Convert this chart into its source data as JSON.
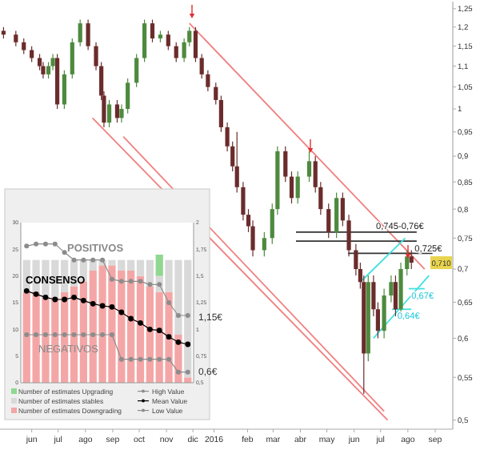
{
  "chart_data": [
    {
      "type": "candlestick",
      "log": true,
      "x": [
        "2015-05-14",
        "2015-05-28",
        "2015-06-06",
        "2015-06-15",
        "2015-06-24",
        "2015-06-28",
        "2015-07-04",
        "2015-07-09",
        "2015-07-14",
        "2015-07-22",
        "2015-07-31",
        "2015-08-09",
        "2015-08-18",
        "2015-08-27",
        "2015-09-02",
        "2015-09-05",
        "2015-09-11",
        "2015-09-20",
        "2015-09-25",
        "2015-10-02",
        "2015-10-12",
        "2015-10-21",
        "2015-10-30",
        "2015-11-08",
        "2015-11-17",
        "2015-11-26",
        "2015-12-05",
        "2015-12-11",
        "2015-12-18",
        "2015-12-25",
        "2016-01-01",
        "2016-01-10",
        "2016-01-16",
        "2016-01-23",
        "2016-01-29",
        "2016-02-03",
        "2016-02-10",
        "2016-02-16",
        "2016-02-21",
        "2016-03-05",
        "2016-03-14",
        "2016-03-20",
        "2016-03-29",
        "2016-04-05",
        "2016-04-12",
        "2016-04-25",
        "2016-05-02",
        "2016-05-08",
        "2016-05-17",
        "2016-05-26",
        "2016-06-02",
        "2016-06-09",
        "2016-06-17",
        "2016-06-22",
        "2016-06-26",
        "2016-07-01",
        "2016-07-07",
        "2016-07-12",
        "2016-07-19",
        "2016-07-27",
        "2016-08-01",
        "2016-08-07",
        "2016-08-14",
        "2016-08-19"
      ],
      "ohlc": [
        [
          1.19,
          1.2,
          1.17,
          1.18
        ],
        [
          1.18,
          1.19,
          1.15,
          1.16
        ],
        [
          1.16,
          1.17,
          1.13,
          1.14
        ],
        [
          1.14,
          1.15,
          1.11,
          1.12
        ],
        [
          1.12,
          1.13,
          1.09,
          1.1
        ],
        [
          1.1,
          1.11,
          1.07,
          1.08
        ],
        [
          1.08,
          1.11,
          1.07,
          1.1
        ],
        [
          1.1,
          1.13,
          1.09,
          1.12
        ],
        [
          1.12,
          1.13,
          1.0,
          1.01
        ],
        [
          1.01,
          1.09,
          1.0,
          1.08
        ],
        [
          1.08,
          1.17,
          1.07,
          1.16
        ],
        [
          1.16,
          1.22,
          1.15,
          1.21
        ],
        [
          1.21,
          1.22,
          1.14,
          1.15
        ],
        [
          1.15,
          1.16,
          1.09,
          1.1
        ],
        [
          1.1,
          1.11,
          1.02,
          1.03
        ],
        [
          1.03,
          1.04,
          0.96,
          0.97
        ],
        [
          0.97,
          1.02,
          0.96,
          1.01
        ],
        [
          1.01,
          1.02,
          0.97,
          0.98
        ],
        [
          0.98,
          1.01,
          0.97,
          1.0
        ],
        [
          1.0,
          1.07,
          0.99,
          1.06
        ],
        [
          1.06,
          1.13,
          1.05,
          1.12
        ],
        [
          1.12,
          1.22,
          1.11,
          1.21
        ],
        [
          1.21,
          1.22,
          1.16,
          1.17
        ],
        [
          1.17,
          1.19,
          1.16,
          1.18
        ],
        [
          1.18,
          1.19,
          1.14,
          1.15
        ],
        [
          1.15,
          1.16,
          1.11,
          1.12
        ],
        [
          1.12,
          1.17,
          1.11,
          1.16
        ],
        [
          1.16,
          1.2,
          1.15,
          1.19
        ],
        [
          1.19,
          1.2,
          1.11,
          1.12
        ],
        [
          1.12,
          1.13,
          1.07,
          1.08
        ],
        [
          1.08,
          1.09,
          1.04,
          1.05
        ],
        [
          1.05,
          1.06,
          1.01,
          1.02
        ],
        [
          1.02,
          1.03,
          0.95,
          0.96
        ],
        [
          0.96,
          0.97,
          0.91,
          0.92
        ],
        [
          0.92,
          0.93,
          0.87,
          0.88
        ],
        [
          0.88,
          0.95,
          0.83,
          0.84
        ],
        [
          0.84,
          0.85,
          0.78,
          0.79
        ],
        [
          0.79,
          0.8,
          0.76,
          0.77
        ],
        [
          0.77,
          0.78,
          0.72,
          0.73
        ],
        [
          0.73,
          0.76,
          0.72,
          0.75
        ],
        [
          0.75,
          0.81,
          0.74,
          0.8
        ],
        [
          0.8,
          0.92,
          0.79,
          0.91
        ],
        [
          0.91,
          0.92,
          0.85,
          0.86
        ],
        [
          0.86,
          0.87,
          0.81,
          0.82
        ],
        [
          0.82,
          0.87,
          0.81,
          0.86
        ],
        [
          0.86,
          0.91,
          0.85,
          0.89
        ],
        [
          0.89,
          0.9,
          0.83,
          0.84
        ],
        [
          0.84,
          0.85,
          0.79,
          0.8
        ],
        [
          0.8,
          0.81,
          0.75,
          0.76
        ],
        [
          0.76,
          0.83,
          0.75,
          0.82
        ],
        [
          0.82,
          0.83,
          0.77,
          0.78
        ],
        [
          0.78,
          0.79,
          0.72,
          0.73
        ],
        [
          0.73,
          0.74,
          0.69,
          0.7
        ],
        [
          0.7,
          0.71,
          0.67,
          0.68
        ],
        [
          0.68,
          0.69,
          0.53,
          0.58
        ],
        [
          0.58,
          0.69,
          0.57,
          0.68
        ],
        [
          0.68,
          0.69,
          0.63,
          0.64
        ],
        [
          0.64,
          0.65,
          0.6,
          0.61
        ],
        [
          0.61,
          0.67,
          0.6,
          0.66
        ],
        [
          0.66,
          0.69,
          0.65,
          0.68
        ],
        [
          0.68,
          0.69,
          0.63,
          0.64
        ],
        [
          0.64,
          0.71,
          0.63,
          0.7
        ],
        [
          0.7,
          0.73,
          0.69,
          0.72
        ],
        [
          0.72,
          0.73,
          0.7,
          0.71
        ]
      ],
      "colors": [
        "#6b2c2c",
        "#6b2c2c",
        "#6b2c2c",
        "#6b2c2c",
        "#6b2c2c",
        "#6b2c2c",
        "#4e8a3e",
        "#4e8a3e",
        "#6b2c2c",
        "#4e8a3e",
        "#4e8a3e",
        "#4e8a3e",
        "#6b2c2c",
        "#6b2c2c",
        "#6b2c2c",
        "#6b2c2c",
        "#4e8a3e",
        "#6b2c2c",
        "#4e8a3e",
        "#4e8a3e",
        "#4e8a3e",
        "#4e8a3e",
        "#6b2c2c",
        "#4e8a3e",
        "#6b2c2c",
        "#6b2c2c",
        "#4e8a3e",
        "#4e8a3e",
        "#6b2c2c",
        "#6b2c2c",
        "#6b2c2c",
        "#6b2c2c",
        "#6b2c2c",
        "#6b2c2c",
        "#6b2c2c",
        "#6b2c2c",
        "#6b2c2c",
        "#6b2c2c",
        "#6b2c2c",
        "#4e8a3e",
        "#4e8a3e",
        "#4e8a3e",
        "#6b2c2c",
        "#6b2c2c",
        "#4e8a3e",
        "#4e8a3e",
        "#6b2c2c",
        "#6b2c2c",
        "#6b2c2c",
        "#4e8a3e",
        "#6b2c2c",
        "#6b2c2c",
        "#6b2c2c",
        "#6b2c2c",
        "#6b2c2c",
        "#4e8a3e",
        "#6b2c2c",
        "#6b2c2c",
        "#4e8a3e",
        "#4e8a3e",
        "#6b2c2c",
        "#4e8a3e",
        "#4e8a3e",
        "#6b2c2c"
      ],
      "series": [
        {
          "type": "line",
          "color": "#f08080",
          "x": [
            "2015-12-11",
            "2016-09-03"
          ],
          "values": [
            1.21,
            0.7
          ]
        },
        {
          "type": "line",
          "color": "#f08080",
          "x": [
            "2015-08-23",
            "2016-07-23"
          ],
          "values": [
            0.98,
            0.5
          ]
        },
        {
          "type": "line",
          "color": "#f08080",
          "x": [
            "2015-09-27",
            "2016-07-19"
          ],
          "values": [
            0.94,
            0.51
          ]
        },
        {
          "type": "line",
          "color": "#333333",
          "x": [
            "2016-04-10",
            "2016-08-25"
          ],
          "values": [
            0.76,
            0.76
          ]
        },
        {
          "type": "line",
          "color": "#333333",
          "x": [
            "2016-04-10",
            "2016-08-25"
          ],
          "values": [
            0.745,
            0.745
          ]
        },
        {
          "type": "line",
          "color": "#333333",
          "x": [
            "2016-06-08",
            "2016-09-12"
          ],
          "values": [
            0.725,
            0.725
          ]
        },
        {
          "type": "line",
          "color": "#40e0e0",
          "x": [
            "2016-06-22",
            "2016-08-12"
          ],
          "values": [
            0.68,
            0.75
          ]
        },
        {
          "type": "line",
          "color": "#40e0e0",
          "x": [
            "2016-07-07",
            "2016-09-08"
          ],
          "values": [
            0.6,
            0.69
          ]
        },
        {
          "type": "line",
          "color": "#40e0e0",
          "x": [
            "2016-08-16",
            "2016-09-03"
          ],
          "values": [
            0.67,
            0.67
          ]
        },
        {
          "type": "line",
          "color": "#40e0e0",
          "x": [
            "2016-07-28",
            "2016-08-19"
          ],
          "values": [
            0.64,
            0.64
          ]
        }
      ],
      "annotations": [
        {
          "text": "0,745-0,76€",
          "x": "2016-07-28",
          "y": 0.76
        },
        {
          "text": "0,725€",
          "x": "2016-08-30",
          "y": 0.725
        },
        {
          "text": "0,67€",
          "x": "2016-08-19",
          "y": 0.67
        },
        {
          "text": "0,64€",
          "x": "2016-08-03",
          "y": 0.64
        },
        {
          "text": "0,710",
          "y": 0.71
        }
      ],
      "xlim": [
        "2015-05-10",
        "2016-10-05"
      ],
      "xticks": [
        {
          "value": "2015-06-15",
          "label": "jun"
        },
        {
          "value": "2015-07-15",
          "label": "jul"
        },
        {
          "value": "2015-08-15",
          "label": "ago"
        },
        {
          "value": "2015-09-15",
          "label": "sep"
        },
        {
          "value": "2015-10-15",
          "label": "oct"
        },
        {
          "value": "2015-11-15",
          "label": "nov"
        },
        {
          "value": "2015-12-15",
          "label": "dic"
        },
        {
          "value": "2016-01-08",
          "label": "2016"
        },
        {
          "value": "2016-02-15",
          "label": "feb"
        },
        {
          "value": "2016-03-15",
          "label": "mar"
        },
        {
          "value": "2016-04-15",
          "label": "abr"
        },
        {
          "value": "2016-05-15",
          "label": "may"
        },
        {
          "value": "2016-06-15",
          "label": "jun"
        },
        {
          "value": "2016-07-15",
          "label": "jul"
        },
        {
          "value": "2016-08-15",
          "label": "ago"
        },
        {
          "value": "2016-09-15",
          "label": "sep"
        }
      ],
      "ylim": [
        0.49,
        1.27
      ],
      "yticks": [
        {
          "value": 0.5,
          "label": "0,5"
        },
        {
          "value": 0.55,
          "label": "0,55"
        },
        {
          "value": 0.6,
          "label": "0,6"
        },
        {
          "value": 0.65,
          "label": "0,65"
        },
        {
          "value": 0.7,
          "label": "0,7"
        },
        {
          "value": 0.75,
          "label": "0,75"
        },
        {
          "value": 0.8,
          "label": "0,8"
        },
        {
          "value": 0.85,
          "label": "0,85"
        },
        {
          "value": 0.9,
          "label": "0,9"
        },
        {
          "value": 0.95,
          "label": "0,95"
        },
        1,
        {
          "value": 1.05,
          "label": "1,05"
        },
        {
          "value": 1.1,
          "label": "1,1"
        },
        {
          "value": 1.15,
          "label": "1,15"
        },
        {
          "value": 1.2,
          "label": "1,2"
        },
        {
          "value": 1.25,
          "label": "1,25"
        }
      ]
    },
    {
      "type": "bar",
      "stacked": true,
      "categories": [
        null,
        null,
        null,
        null,
        null,
        null,
        null,
        null,
        null,
        null,
        null,
        null,
        null,
        null,
        null,
        null,
        null,
        null
      ],
      "series": [
        {
          "name": "Number of estimates Downgrading",
          "color": "#f4a6a6",
          "values": [
            17,
            17,
            16,
            16,
            17,
            18,
            19,
            21,
            22,
            22,
            21,
            21,
            20,
            18,
            17,
            17,
            9,
            1
          ]
        },
        {
          "name": "Number of estimates stables",
          "color": "#d9d9d9",
          "values": [
            6,
            6,
            7,
            7,
            6,
            5,
            4,
            2,
            1,
            1,
            2,
            2,
            3,
            5,
            3,
            6,
            14,
            22
          ]
        },
        {
          "name": "Number of estimates Upgrading",
          "color": "#90d890",
          "values": [
            0,
            0,
            0,
            0,
            0,
            0,
            0,
            0,
            0,
            0,
            0,
            0,
            0,
            0,
            4,
            0,
            0,
            0
          ]
        },
        {
          "name": "High Value",
          "type": "line",
          "axis": "y2",
          "marker": "circle",
          "color": "#8c8c8c",
          "values": [
            1.78,
            1.8,
            1.8,
            1.8,
            1.72,
            1.65,
            1.65,
            1.65,
            1.65,
            1.47,
            1.45,
            1.45,
            1.45,
            1.42,
            1.42,
            1.25,
            1.13,
            1.13
          ]
        },
        {
          "name": "Mean Value",
          "type": "line",
          "axis": "y2",
          "marker": "circle",
          "color": "#000000",
          "values": [
            1.36,
            1.33,
            1.3,
            1.28,
            1.28,
            1.3,
            1.27,
            1.24,
            1.22,
            1.21,
            1.16,
            1.1,
            1.06,
            1.0,
            0.99,
            0.93,
            0.88,
            0.86
          ]
        },
        {
          "name": "Low Value",
          "type": "line",
          "axis": "y2",
          "marker": "circle",
          "color": "#8c8c8c",
          "values": [
            0.95,
            0.95,
            0.95,
            0.95,
            0.95,
            0.95,
            0.95,
            0.95,
            0.95,
            0.95,
            0.72,
            0.72,
            0.72,
            0.72,
            0.72,
            0.72,
            0.6,
            0.6
          ]
        }
      ],
      "ylim": [
        0,
        30
      ],
      "yticks": [
        0,
        5,
        10,
        15,
        20,
        25,
        30
      ],
      "y2lim": [
        0.5,
        2
      ],
      "y2ticks": [
        {
          "value": 0.5,
          "label": "0,5"
        },
        {
          "value": 0.75,
          "label": "0,75"
        },
        1,
        {
          "value": 1.25,
          "label": "1,25"
        },
        {
          "value": 1.5,
          "label": "1,5"
        },
        {
          "value": 1.75,
          "label": "1,75"
        },
        2
      ],
      "legend": "bottom",
      "annotations": [
        "POSITIVOS",
        "CONSENSO",
        "NEGATIVOS",
        "1,15€",
        "0,6€"
      ]
    }
  ]
}
